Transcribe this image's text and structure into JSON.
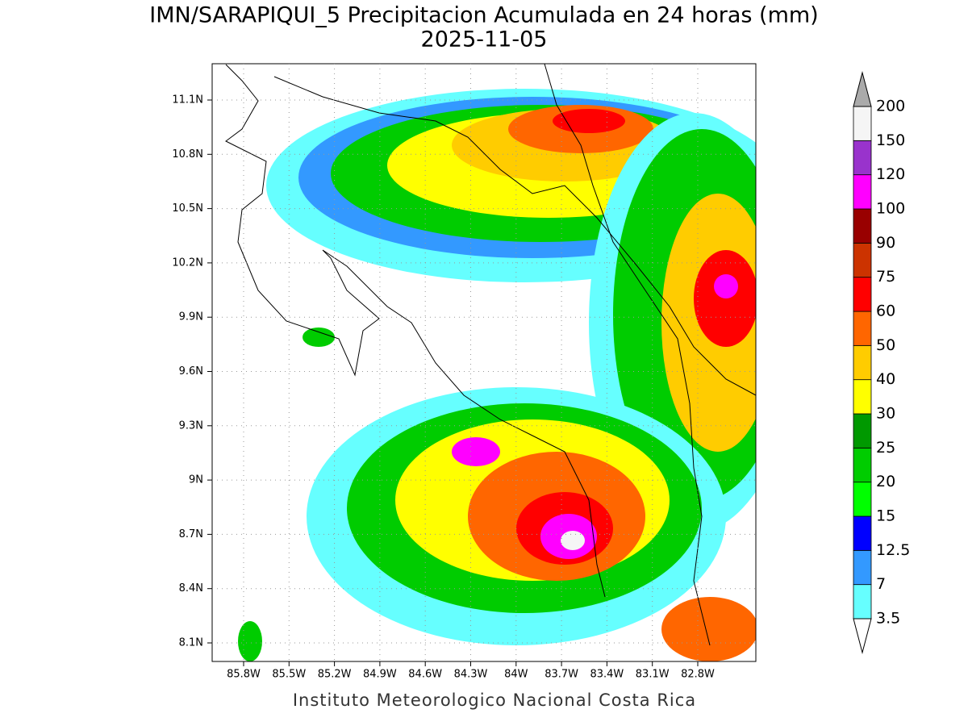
{
  "title": "IMN/SARAPIQUI_5 Precipitacion Acumulada en 24 horas (mm)",
  "subtitle": "2025-11-05",
  "lat_ticks": [
    "8.1N",
    "8.4N",
    "8.7N",
    "9N",
    "9.3N",
    "9.6N",
    "9.9N",
    "10.2N",
    "10.5N",
    "10.8N",
    "11.1N"
  ],
  "lon_ticks": [
    "85.8W",
    "85.5W",
    "85.2W",
    "84.9W",
    "84.6W",
    "84.3W",
    "84W",
    "83.7W",
    "83.4W",
    "83.1W",
    "82.8W"
  ],
  "colorbar": {
    "levels": [
      3.5,
      7,
      12.5,
      15,
      20,
      25,
      30,
      40,
      50,
      60,
      75,
      90,
      100,
      120,
      150,
      200
    ],
    "colors": [
      "#66ffff",
      "#3399ff",
      "#0000ff",
      "#00ff00",
      "#00cc00",
      "#009900",
      "#ffff00",
      "#ffcc00",
      "#ff6600",
      "#ff0000",
      "#cc3300",
      "#990000",
      "#ff00ff",
      "#9933cc",
      "#f5f5f5"
    ],
    "below_color": "#ffffff",
    "above_color": "#aaaaaa"
  },
  "credit": "Instituto Meteorologico Nacional Costa Rica"
}
